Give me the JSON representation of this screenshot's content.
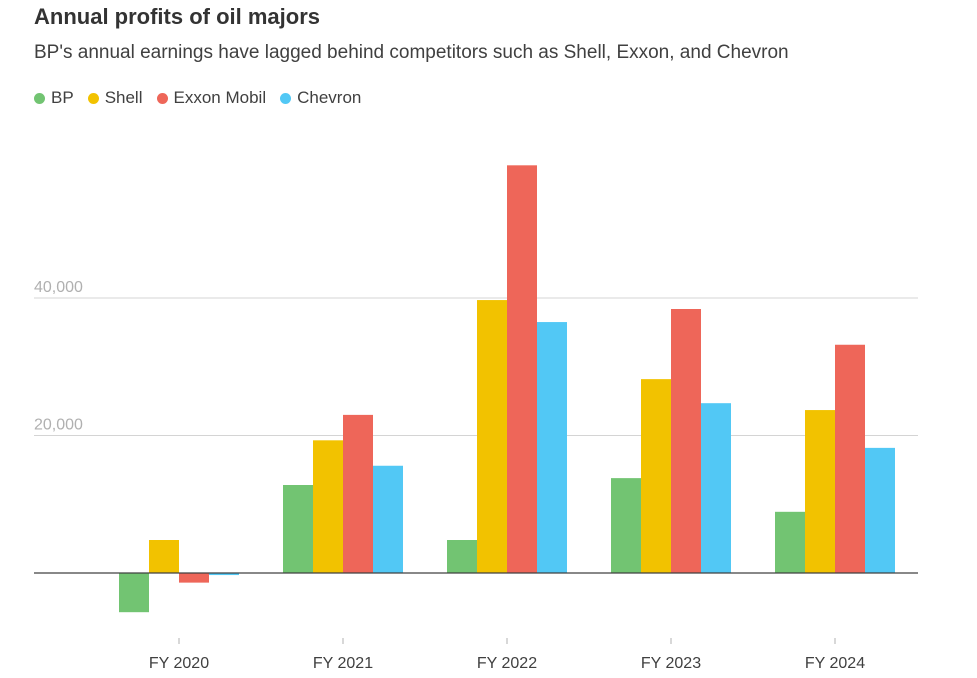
{
  "chart_data": {
    "type": "bar",
    "title": "Annual profits of oil majors",
    "subtitle": "BP's annual earnings have lagged behind competitors such as Shell, Exxon, and Chevron",
    "categories": [
      "FY 2020",
      "FY 2021",
      "FY 2022",
      "FY 2023",
      "FY 2024"
    ],
    "series": [
      {
        "name": "BP",
        "color": "#72c472",
        "values": [
          -5700,
          12800,
          4800,
          13800,
          8900
        ]
      },
      {
        "name": "Shell",
        "color": "#f2c200",
        "values": [
          4800,
          19300,
          39700,
          28200,
          23700
        ]
      },
      {
        "name": "Exxon Mobil",
        "color": "#ee6659",
        "values": [
          -1400,
          23000,
          59300,
          38400,
          33200
        ]
      },
      {
        "name": "Chevron",
        "color": "#52c8f5",
        "values": [
          -300,
          15600,
          36500,
          24700,
          18200
        ]
      }
    ],
    "yticks": [
      20000,
      40000
    ],
    "ytick_labels": [
      "20,000",
      "40,000"
    ],
    "ylim": [
      -7000,
      62000
    ],
    "grid": true,
    "legend_position": "top-left",
    "xlabel": "",
    "ylabel": ""
  }
}
